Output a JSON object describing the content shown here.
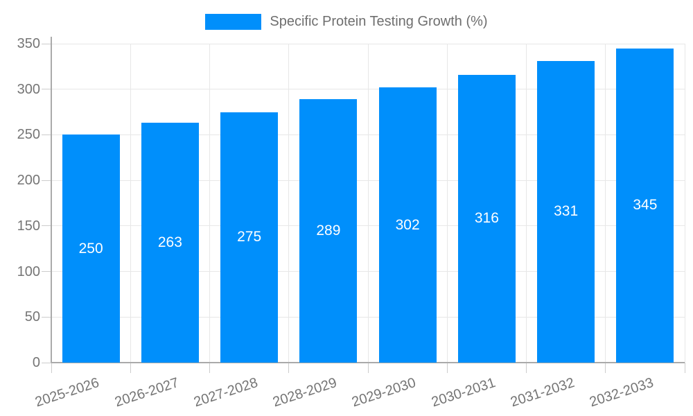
{
  "legend": {
    "label": "Specific Protein Testing Growth (%)"
  },
  "chart_data": {
    "type": "bar",
    "title": "",
    "xlabel": "",
    "ylabel": "",
    "categories": [
      "2025-2026",
      "2026-2027",
      "2027-2028",
      "2028-2029",
      "2029-2030",
      "2030-2031",
      "2031-2032",
      "2032-2033"
    ],
    "series": [
      {
        "name": "Specific Protein Testing Growth (%)",
        "values": [
          250,
          263,
          275,
          289,
          302,
          316,
          331,
          345
        ]
      }
    ],
    "ylim": [
      0,
      350
    ],
    "yticks": [
      0,
      50,
      100,
      150,
      200,
      250,
      300,
      350
    ],
    "grid": true,
    "legend_position": "top",
    "bar_labels_visible": true
  },
  "colors": {
    "bar": "#008FFB",
    "bar_label_text": "#ffffff",
    "axis_line": "#aaaaaa",
    "gridline": "#e7e7e7",
    "tick": "#cccccc",
    "tick_label_text": "#757575",
    "legend_text": "#6e6e6e",
    "background": "#ffffff"
  }
}
